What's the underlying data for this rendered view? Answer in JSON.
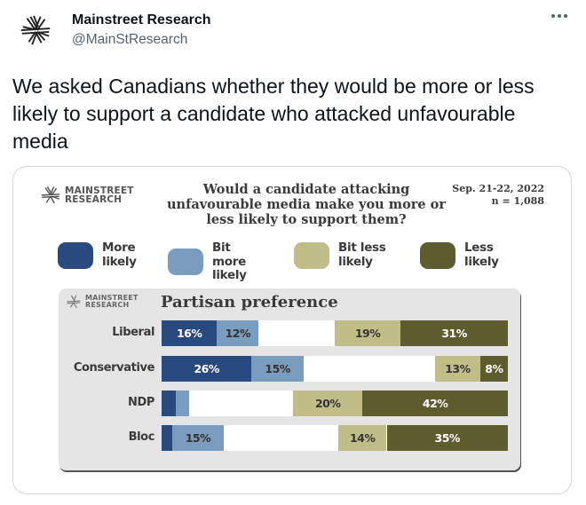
{
  "tweet": {
    "author_name": "Mainstreet Research",
    "author_handle": "@MainStResearch",
    "text": "We asked Canadians whether they would be more or less likely to support a candidate who attacked unfavourable media",
    "avatar_icon": "mainstreet-logo-icon",
    "more_icon": "more-options-icon"
  },
  "card": {
    "brand_line1": "MAINSTREET",
    "brand_line2": "RESEARCH",
    "question": "Would a candidate attacking unfavourable media make you more or less likely to support them?",
    "date": "Sep. 21-22, 2022",
    "sample": "n = 1,088",
    "panel_title": "Partisan preference"
  },
  "colors": {
    "more_likely": "#284a7e",
    "bit_more_likely": "#7a9cbf",
    "bit_less_likely": "#c0bd88",
    "less_likely": "#5c5c2f"
  },
  "chart_data": {
    "type": "bar",
    "orientation": "horizontal",
    "stacked": true,
    "diverging": true,
    "title": "Would a candidate attacking unfavourable media make you more or less likely to support them?",
    "subtitle": "Partisan preference",
    "annotations": [
      "Sep. 21-22, 2022",
      "n = 1,088"
    ],
    "categories": [
      "Liberal",
      "Conservative",
      "NDP",
      "Bloc"
    ],
    "series": [
      {
        "name": "More likely",
        "values": [
          16,
          26,
          4,
          3
        ],
        "labels": [
          "16%",
          "26%",
          "",
          ""
        ]
      },
      {
        "name": "Bit more likely",
        "values": [
          12,
          15,
          4,
          15
        ],
        "labels": [
          "12%",
          "15%",
          "",
          "15%"
        ]
      },
      {
        "name": "Bit less likely",
        "values": [
          19,
          13,
          20,
          14
        ],
        "labels": [
          "19%",
          "13%",
          "20%",
          "14%"
        ]
      },
      {
        "name": "Less likely",
        "values": [
          31,
          8,
          42,
          35
        ],
        "labels": [
          "31%",
          "8%",
          "42%",
          "35%"
        ]
      }
    ],
    "legend": [
      "More likely",
      "Bit more likely",
      "Bit less likely",
      "Less likely"
    ],
    "legend_position": "top",
    "xlim": [
      0,
      100
    ],
    "grid": false
  }
}
